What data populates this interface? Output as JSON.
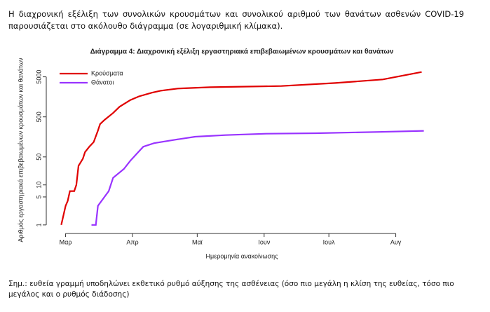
{
  "intro": "Η διαχρονική εξέλιξη των συνολικών κρουσμάτων και συνολικού αριθμού των θανάτων ασθενών COVID-19 παρουσιάζεται στο ακόλουθο διάγραμμα (σε λογαριθμική κλίμακα).",
  "chart_data": {
    "type": "line",
    "title": "Διάγραμμα 4: Διαχρονική εξέλιξη εργαστηριακά επιβεβαιωμένων κρουσμάτων και θανάτων",
    "xlabel": "Ημερομηνία ανακοίνωσης",
    "ylabel": "Αριθμός εργαστηριακά επιβεβαιωμένων κρουσμάτων και θανάτων",
    "ylog": true,
    "legend": "upper left",
    "xlim": [
      -7,
      171
    ],
    "ylim": [
      0.78,
      9000
    ],
    "xticks": [
      {
        "value": 0,
        "label": "Μαρ"
      },
      {
        "value": 31,
        "label": "Απρ"
      },
      {
        "value": 61,
        "label": "Μαϊ"
      },
      {
        "value": 92,
        "label": "Ιουν"
      },
      {
        "value": 122,
        "label": "Ιουλ"
      },
      {
        "value": 153,
        "label": "Αυγ"
      }
    ],
    "yticks": [
      1,
      5,
      10,
      50,
      500,
      5000
    ],
    "series": [
      {
        "name": "Κρούσματα",
        "color": "#e00000",
        "x": [
          -2,
          0,
          1,
          2,
          4,
          5,
          6,
          8,
          9,
          11,
          13,
          15,
          16,
          18,
          22,
          25,
          30,
          34,
          40,
          44,
          52,
          67,
          100,
          125,
          147,
          165
        ],
        "values": [
          1,
          3,
          4,
          7,
          7,
          10,
          30,
          45,
          66,
          90,
          117,
          228,
          331,
          418,
          624,
          892,
          1314,
          1620,
          2011,
          2250,
          2550,
          2750,
          2950,
          3500,
          4300,
          6600
        ]
      },
      {
        "name": "Θάνατοι",
        "color": "#9933ff",
        "x": [
          12,
          14,
          15,
          18,
          20,
          22,
          27,
          30,
          33,
          36,
          41,
          51,
          60,
          74,
          93,
          116,
          145,
          166
        ],
        "values": [
          1,
          1,
          3,
          5,
          7,
          15,
          25,
          40,
          60,
          90,
          110,
          135,
          160,
          175,
          190,
          195,
          210,
          224
        ]
      }
    ]
  },
  "note": "Σημ.: ευθεία γραμμή υποδηλώνει εκθετικό ρυθμό αύξησης της ασθένειας (όσο πιο μεγάλη η κλίση της ευθείας, τόσο πιο μεγάλος και ο ρυθμός διάδοσης)"
}
